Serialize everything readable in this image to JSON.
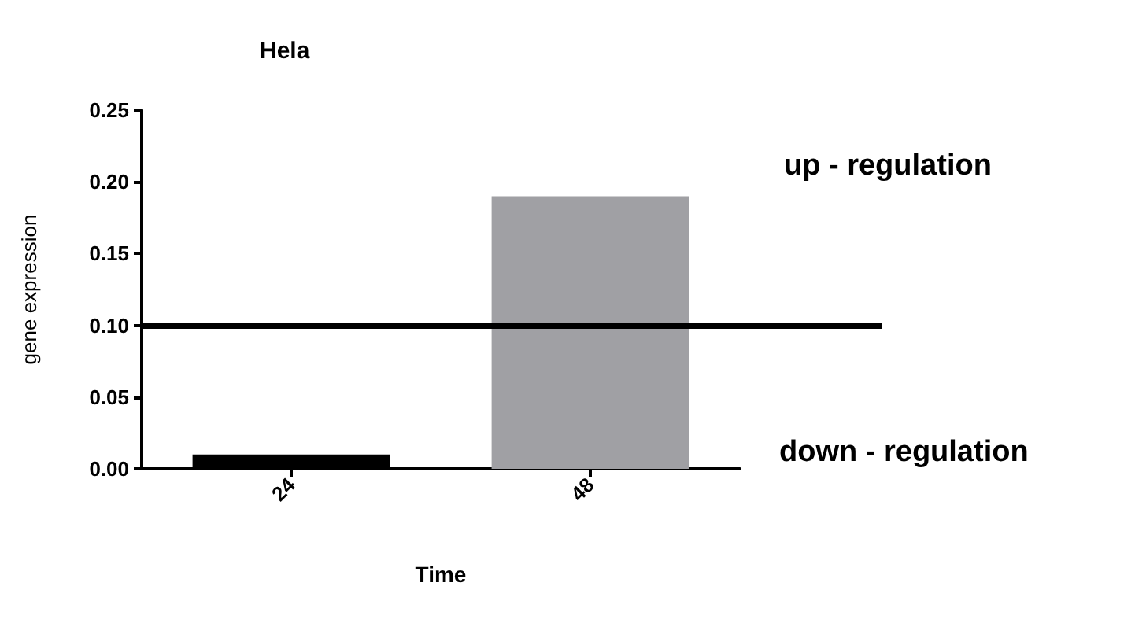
{
  "chart_data": {
    "type": "bar",
    "title": "Hela",
    "xlabel": "Time",
    "ylabel": "gene expression",
    "categories": [
      "24",
      "48"
    ],
    "values": [
      0.01,
      0.19
    ],
    "colors": [
      "#000000",
      "#a0a0a4"
    ],
    "ylim": [
      0,
      0.25
    ],
    "yticks": [
      {
        "value": 0,
        "label": "0.00"
      },
      {
        "value": 0.05,
        "label": "0.05"
      },
      {
        "value": 0.1,
        "label": "0.10"
      },
      {
        "value": 0.15,
        "label": "0.15"
      },
      {
        "value": 0.2,
        "label": "0.20"
      },
      {
        "value": 0.25,
        "label": "0.25"
      }
    ],
    "ref_lines": [
      {
        "axis": "y",
        "value": 0.1,
        "color": "#000000",
        "line_style": "solid"
      }
    ],
    "annotations": [
      "up - regulation",
      "down - regulation"
    ],
    "grid": false
  }
}
